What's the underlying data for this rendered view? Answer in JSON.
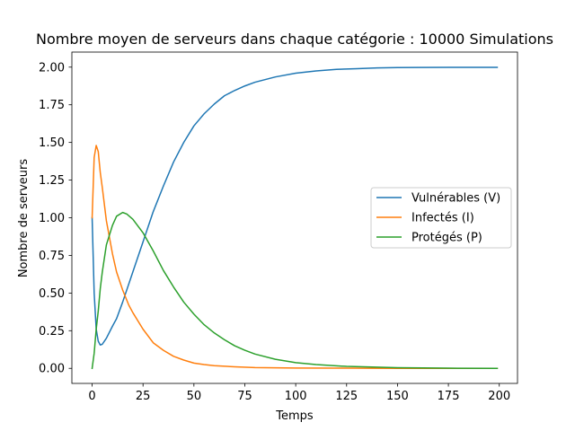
{
  "chart_data": {
    "type": "line",
    "title": "Nombre moyen de serveurs dans chaque catégorie : 10000 Simulations",
    "xlabel": "Temps",
    "ylabel": "Nombre de serveurs",
    "xlim": [
      -9.95,
      208.95
    ],
    "ylim": [
      -0.1,
      2.1
    ],
    "x_ticks": [
      0,
      25,
      50,
      75,
      100,
      125,
      150,
      175,
      200
    ],
    "x_tick_labels": [
      "0",
      "25",
      "50",
      "75",
      "100",
      "125",
      "150",
      "175",
      "200"
    ],
    "y_ticks": [
      0,
      0.25,
      0.5,
      0.75,
      1.0,
      1.25,
      1.5,
      1.75,
      2.0
    ],
    "y_tick_labels": [
      "0.00",
      "0.25",
      "0.50",
      "0.75",
      "1.00",
      "1.25",
      "1.50",
      "1.75",
      "2.00"
    ],
    "grid": false,
    "legend_position": "center-right",
    "series": [
      {
        "name": "Vulnérables (V)",
        "color": "#1f77b4",
        "x": [
          0,
          1,
          2,
          3,
          4,
          5,
          7,
          10,
          12,
          15,
          20,
          25,
          30,
          35,
          40,
          45,
          50,
          55,
          60,
          65,
          70,
          75,
          80,
          90,
          100,
          110,
          120,
          130,
          140,
          150,
          160,
          175,
          199
        ],
        "y": [
          1.0,
          0.5,
          0.26,
          0.18,
          0.155,
          0.16,
          0.2,
          0.28,
          0.33,
          0.44,
          0.64,
          0.84,
          1.04,
          1.21,
          1.37,
          1.5,
          1.61,
          1.69,
          1.755,
          1.81,
          1.845,
          1.875,
          1.9,
          1.935,
          1.96,
          1.975,
          1.985,
          1.99,
          1.995,
          1.997,
          1.998,
          1.999,
          1.999
        ]
      },
      {
        "name": "Infectés (I)",
        "color": "#ff7f0e",
        "x": [
          0,
          1,
          2,
          3,
          4,
          5,
          7,
          10,
          12,
          15,
          18,
          20,
          25,
          30,
          35,
          40,
          45,
          50,
          55,
          60,
          70,
          80,
          100,
          125,
          150,
          175,
          199
        ],
        "y": [
          1.0,
          1.4,
          1.48,
          1.44,
          1.3,
          1.2,
          0.98,
          0.76,
          0.64,
          0.52,
          0.42,
          0.37,
          0.26,
          0.17,
          0.12,
          0.08,
          0.055,
          0.035,
          0.025,
          0.018,
          0.01,
          0.005,
          0.002,
          0.001,
          0.0,
          0.0,
          0.0
        ]
      },
      {
        "name": "Protégés (P)",
        "color": "#2ca02c",
        "x": [
          0,
          1,
          2,
          3,
          4,
          5,
          7,
          10,
          12,
          15,
          17,
          20,
          25,
          30,
          35,
          40,
          45,
          50,
          55,
          60,
          65,
          70,
          75,
          80,
          90,
          100,
          110,
          125,
          150,
          175,
          199
        ],
        "y": [
          0.0,
          0.1,
          0.26,
          0.38,
          0.53,
          0.64,
          0.82,
          0.95,
          1.01,
          1.035,
          1.025,
          0.99,
          0.9,
          0.78,
          0.65,
          0.54,
          0.44,
          0.36,
          0.29,
          0.235,
          0.19,
          0.15,
          0.12,
          0.095,
          0.06,
          0.038,
          0.025,
          0.013,
          0.004,
          0.001,
          0.0
        ]
      }
    ]
  }
}
